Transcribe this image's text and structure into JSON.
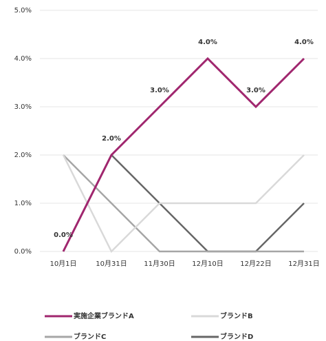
{
  "chart_data": {
    "type": "line",
    "categories": [
      "10月1日",
      "10月31日",
      "11月30日",
      "12月10日",
      "12月22日",
      "12月31日"
    ],
    "series": [
      {
        "name": "実施企業ブランドA",
        "color": "#a0266e",
        "values": [
          0,
          2,
          3,
          4,
          3,
          4
        ],
        "value_labels": [
          "0.0%",
          "2.0%",
          "3.0%",
          "4.0%",
          "3.0%",
          "4.0%"
        ]
      },
      {
        "name": "ブランドB",
        "color": "#d9d9d9",
        "values": [
          2,
          0,
          1,
          1,
          1,
          2
        ]
      },
      {
        "name": "ブランドC",
        "color": "#a6a6a6",
        "values": [
          2,
          1,
          0,
          0,
          0,
          0
        ]
      },
      {
        "name": "ブランドD",
        "color": "#666666",
        "values": [
          0,
          2,
          1,
          0,
          0,
          1
        ]
      }
    ],
    "ylim": [
      0,
      5
    ],
    "yticks": [
      {
        "value": 0,
        "label": "0.0%"
      },
      {
        "value": 1,
        "label": "1.0%"
      },
      {
        "value": 2,
        "label": "2.0%"
      },
      {
        "value": 3,
        "label": "3.0%"
      },
      {
        "value": 4,
        "label": "4.0%"
      },
      {
        "value": 5,
        "label": "5.0%"
      }
    ],
    "grid": true
  }
}
